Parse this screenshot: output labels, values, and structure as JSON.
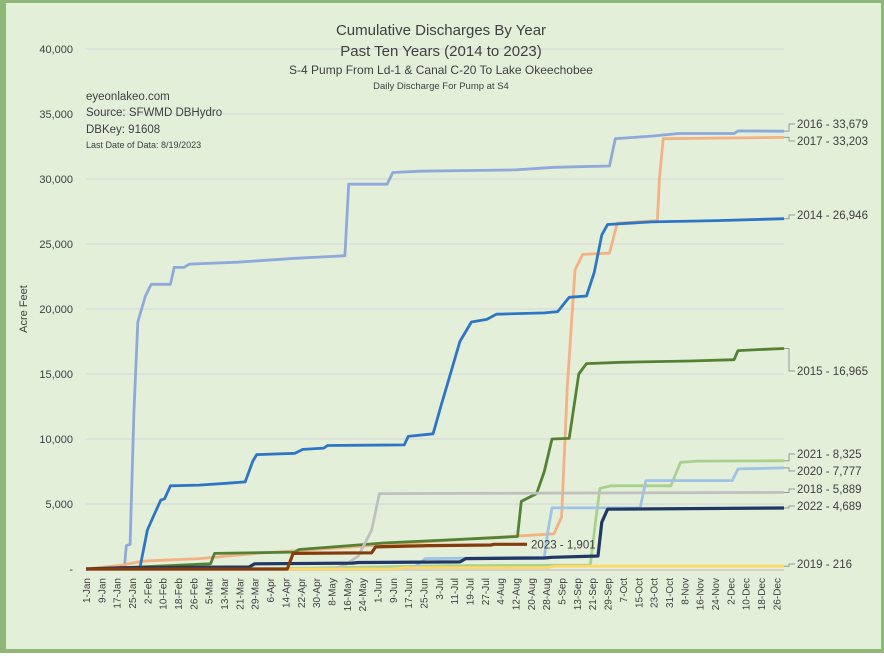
{
  "chart_data": {
    "type": "line",
    "title": "Cumulative Discharges By Year",
    "subtitle": "Past Ten Years (2014 to 2023)",
    "subtitle2": "S-4 Pump From Ld-1 & Canal C-20 To Lake Okeechobee",
    "subtitle3": "Daily Discharge For Pump at S4",
    "annotations": [
      "eyeonlakeo.com",
      "Source: SFWMD DBHydro",
      "DBKey: 91608",
      "Last Date of Data: 8/19/2023"
    ],
    "xlabel": "",
    "ylabel": "Acre Feet",
    "ylim": [
      0,
      40000
    ],
    "y_ticks": [
      0,
      5000,
      10000,
      15000,
      20000,
      25000,
      30000,
      35000,
      40000
    ],
    "y_tick_labels": [
      "-",
      "5,000",
      "10,000",
      "15,000",
      "20,000",
      "25,000",
      "30,000",
      "35,000",
      "40,000"
    ],
    "x_tick_labels": [
      "1-Jan",
      "9-Jan",
      "17-Jan",
      "25-Jan",
      "2-Feb",
      "10-Feb",
      "18-Feb",
      "26-Feb",
      "5-Mar",
      "13-Mar",
      "21-Mar",
      "29-Mar",
      "6-Apr",
      "14-Apr",
      "22-Apr",
      "30-Apr",
      "8-May",
      "16-May",
      "24-May",
      "1-Jun",
      "9-Jun",
      "17-Jun",
      "25-Jun",
      "3-Jul",
      "11-Jul",
      "19-Jul",
      "27-Jul",
      "4-Aug",
      "12-Aug",
      "20-Aug",
      "28-Aug",
      "5-Sep",
      "13-Sep",
      "21-Sep",
      "29-Sep",
      "7-Oct",
      "15-Oct",
      "23-Oct",
      "31-Oct",
      "8-Nov",
      "16-Nov",
      "24-Nov",
      "2-Dec",
      "10-Dec",
      "18-Dec",
      "26-Dec"
    ],
    "grid": true,
    "legend": "end-of-line labels",
    "series": [
      {
        "name": "2016",
        "label": "2016 - 33,679",
        "color": "#8eaadb",
        "points": [
          [
            1,
            0
          ],
          [
            21,
            100
          ],
          [
            22,
            1800
          ],
          [
            24,
            1900
          ],
          [
            26,
            12000
          ],
          [
            28,
            19000
          ],
          [
            32,
            21000
          ],
          [
            35,
            21900
          ],
          [
            45,
            21900
          ],
          [
            47,
            23200
          ],
          [
            52,
            23200
          ],
          [
            55,
            23450
          ],
          [
            80,
            23600
          ],
          [
            110,
            23900
          ],
          [
            130,
            24050
          ],
          [
            136,
            24100
          ],
          [
            138,
            29600
          ],
          [
            158,
            29600
          ],
          [
            161,
            30500
          ],
          [
            175,
            30600
          ],
          [
            225,
            30700
          ],
          [
            245,
            30900
          ],
          [
            274,
            31000
          ],
          [
            277,
            33100
          ],
          [
            296,
            33300
          ],
          [
            310,
            33500
          ],
          [
            339,
            33500
          ],
          [
            341,
            33700
          ],
          [
            365,
            33679
          ]
        ]
      },
      {
        "name": "2017",
        "label": "2017 - 33,203",
        "color": "#f4b183",
        "points": [
          [
            1,
            0
          ],
          [
            20,
            300
          ],
          [
            30,
            600
          ],
          [
            60,
            800
          ],
          [
            90,
            1200
          ],
          [
            130,
            1600
          ],
          [
            170,
            2000
          ],
          [
            210,
            2400
          ],
          [
            245,
            2700
          ],
          [
            249,
            4000
          ],
          [
            252,
            14000
          ],
          [
            256,
            23000
          ],
          [
            260,
            24200
          ],
          [
            274,
            24300
          ],
          [
            278,
            26600
          ],
          [
            299,
            26800
          ],
          [
            300,
            30000
          ],
          [
            302,
            33100
          ],
          [
            365,
            33203
          ]
        ]
      },
      {
        "name": "2014",
        "label": "2014 - 26,946",
        "color": "#2e75c6",
        "points": [
          [
            1,
            0
          ],
          [
            29,
            0
          ],
          [
            33,
            3000
          ],
          [
            36,
            4000
          ],
          [
            40,
            5300
          ],
          [
            42,
            5400
          ],
          [
            45,
            6400
          ],
          [
            60,
            6450
          ],
          [
            75,
            6600
          ],
          [
            84,
            6700
          ],
          [
            88,
            8300
          ],
          [
            90,
            8800
          ],
          [
            110,
            8900
          ],
          [
            114,
            9200
          ],
          [
            125,
            9300
          ],
          [
            127,
            9500
          ],
          [
            167,
            9550
          ],
          [
            169,
            10200
          ],
          [
            182,
            10400
          ],
          [
            186,
            12500
          ],
          [
            192,
            15500
          ],
          [
            196,
            17500
          ],
          [
            202,
            19000
          ],
          [
            210,
            19200
          ],
          [
            215,
            19600
          ],
          [
            240,
            19700
          ],
          [
            247,
            19800
          ],
          [
            253,
            20900
          ],
          [
            262,
            21000
          ],
          [
            266,
            22800
          ],
          [
            270,
            25700
          ],
          [
            273,
            26500
          ],
          [
            296,
            26700
          ],
          [
            330,
            26800
          ],
          [
            365,
            26946
          ]
        ]
      },
      {
        "name": "2015",
        "label": "2015 - 16,965",
        "color": "#548235",
        "points": [
          [
            1,
            0
          ],
          [
            20,
            100
          ],
          [
            50,
            300
          ],
          [
            66,
            400
          ],
          [
            68,
            1200
          ],
          [
            110,
            1300
          ],
          [
            112,
            1500
          ],
          [
            130,
            1700
          ],
          [
            156,
            2000
          ],
          [
            185,
            2200
          ],
          [
            213,
            2400
          ],
          [
            226,
            2500
          ],
          [
            228,
            5200
          ],
          [
            236,
            5800
          ],
          [
            240,
            7500
          ],
          [
            244,
            10000
          ],
          [
            253,
            10050
          ],
          [
            258,
            15000
          ],
          [
            262,
            15800
          ],
          [
            280,
            15900
          ],
          [
            316,
            16000
          ],
          [
            339,
            16100
          ],
          [
            341,
            16800
          ],
          [
            355,
            16900
          ],
          [
            365,
            16965
          ]
        ]
      },
      {
        "name": "2021",
        "label": "2021 - 8,325",
        "color": "#a9d18e",
        "points": [
          [
            1,
            0
          ],
          [
            90,
            0
          ],
          [
            170,
            200
          ],
          [
            190,
            250
          ],
          [
            264,
            300
          ],
          [
            267,
            4000
          ],
          [
            269,
            6200
          ],
          [
            275,
            6400
          ],
          [
            306,
            6400
          ],
          [
            311,
            8200
          ],
          [
            320,
            8300
          ],
          [
            365,
            8325
          ]
        ]
      },
      {
        "name": "2020",
        "label": "2020 - 7,777",
        "color": "#9dc3e6",
        "points": [
          [
            1,
            0
          ],
          [
            150,
            0
          ],
          [
            172,
            100
          ],
          [
            178,
            800
          ],
          [
            240,
            900
          ],
          [
            242,
            3000
          ],
          [
            244,
            4700
          ],
          [
            290,
            4700
          ],
          [
            293,
            6800
          ],
          [
            338,
            6800
          ],
          [
            341,
            7700
          ],
          [
            365,
            7777
          ]
        ]
      },
      {
        "name": "2018",
        "label": "2018 - 5,889",
        "color": "#c0c0c0",
        "points": [
          [
            1,
            0
          ],
          [
            130,
            0
          ],
          [
            136,
            300
          ],
          [
            143,
            1000
          ],
          [
            150,
            3000
          ],
          [
            154,
            5800
          ],
          [
            365,
            5889
          ]
        ]
      },
      {
        "name": "2022",
        "label": "2022 - 4,689",
        "color": "#1f3864",
        "points": [
          [
            1,
            0
          ],
          [
            20,
            100
          ],
          [
            86,
            150
          ],
          [
            89,
            400
          ],
          [
            140,
            450
          ],
          [
            143,
            500
          ],
          [
            196,
            550
          ],
          [
            199,
            800
          ],
          [
            240,
            850
          ],
          [
            244,
            900
          ],
          [
            268,
            1000
          ],
          [
            270,
            3600
          ],
          [
            273,
            4600
          ],
          [
            365,
            4689
          ]
        ]
      },
      {
        "name": "2019",
        "label": "2019 - 216",
        "color": "#ffd966",
        "points": [
          [
            1,
            0
          ],
          [
            160,
            0
          ],
          [
            168,
            100
          ],
          [
            242,
            110
          ],
          [
            245,
            216
          ],
          [
            365,
            216
          ]
        ]
      },
      {
        "name": "2023",
        "label": "2023 - 1,901",
        "color": "#843c0c",
        "points": [
          [
            1,
            0
          ],
          [
            106,
            0
          ],
          [
            109,
            1200
          ],
          [
            150,
            1250
          ],
          [
            152,
            1700
          ],
          [
            180,
            1800
          ],
          [
            212,
            1850
          ],
          [
            214,
            1901
          ],
          [
            231,
            1901
          ]
        ]
      }
    ]
  }
}
